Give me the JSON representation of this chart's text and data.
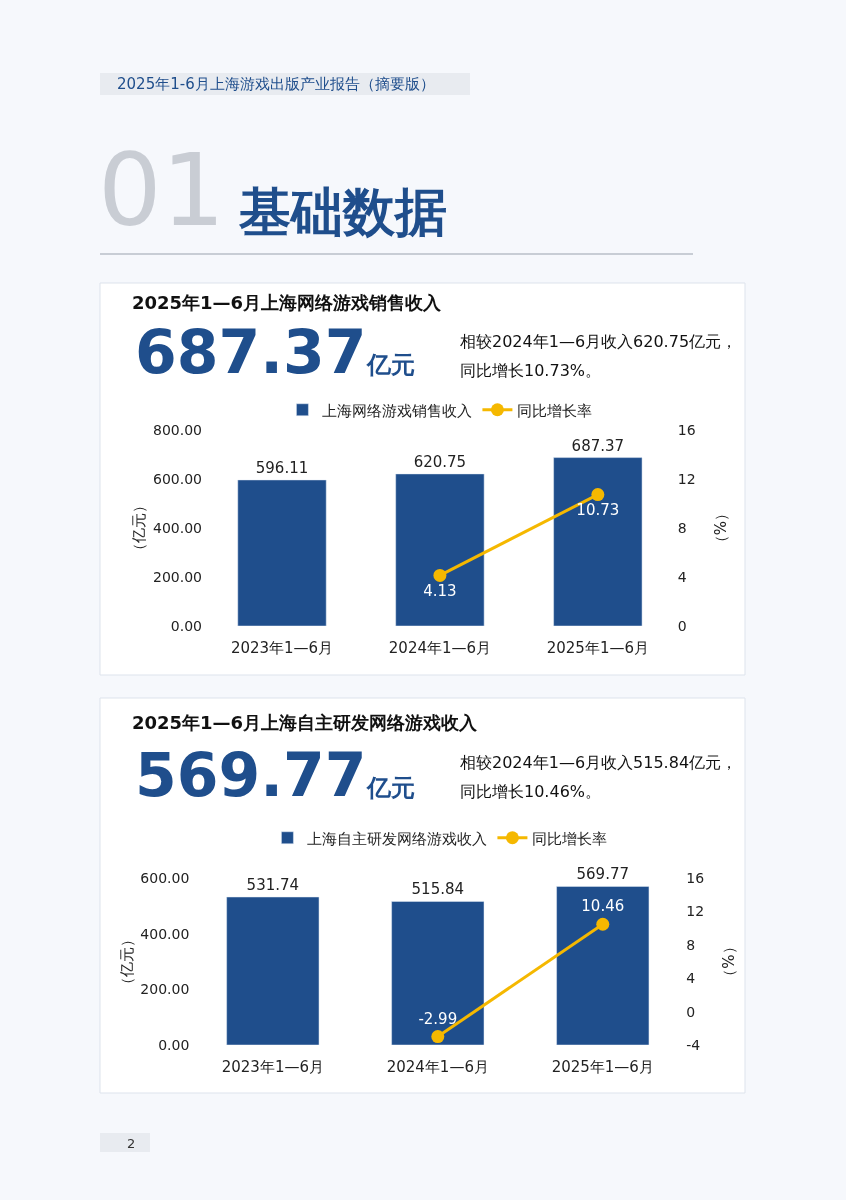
{
  "chart_data": [
    {
      "type": "bar",
      "title": "2025年1—6月上海网络游戏销售收入",
      "ylabel": "（亿元）",
      "y2label": "（%）",
      "annotations": [
        "2025年1-6月上海游戏出版产业报告（摘要版）",
        "01",
        "基础数据",
        "687.37亿元",
        "相较2024年1—6月收入620.75亿元，",
        "同比增长10.73%。"
      ],
      "categories": [
        "2023年1—6月",
        "2024年1—6月",
        "2025年1—6月"
      ],
      "series": [
        {
          "name": "上海网络游戏销售收入",
          "color": "#1f4e8c",
          "values": [
            596.11,
            620.75,
            687.37
          ]
        },
        {
          "name": "同比增长率",
          "type": "line",
          "axis": "y2",
          "color": "#f5b800",
          "values": [
            null,
            4.13,
            10.73
          ]
        }
      ],
      "ylim": [
        0,
        800
      ],
      "yticks": [
        {
          "value": 0,
          "label": "0.00"
        },
        {
          "value": 200,
          "label": "200.00"
        },
        {
          "value": 400,
          "label": "400.00"
        },
        {
          "value": 600,
          "label": "600.00"
        },
        {
          "value": 800,
          "label": "800.00"
        }
      ],
      "y2lim": [
        0,
        16
      ],
      "y2ticks": [
        0,
        4,
        8,
        12,
        16
      ],
      "data_labels": true,
      "legend": "top",
      "marker": "circle"
    },
    {
      "type": "bar",
      "title": "2025年1—6月上海自主研发网络游戏收入",
      "ylabel": "（亿元）",
      "y2label": "（%）",
      "annotations": [
        "569.77亿元",
        "相较2024年1—6月收入515.84亿元，",
        "同比增长10.46%。",
        "2"
      ],
      "categories": [
        "2023年1—6月",
        "2024年1—6月",
        "2025年1—6月"
      ],
      "series": [
        {
          "name": "上海自主研发网络游戏收入",
          "color": "#1f4e8c",
          "values": [
            531.74,
            515.84,
            569.77
          ]
        },
        {
          "name": "同比增长率",
          "type": "line",
          "axis": "y2",
          "color": "#f5b800",
          "values": [
            null,
            -2.99,
            10.46
          ]
        }
      ],
      "ylim": [
        0,
        600
      ],
      "yticks": [
        {
          "value": 0,
          "label": "0.00"
        },
        {
          "value": 200,
          "label": "200.00"
        },
        {
          "value": 400,
          "label": "400.00"
        },
        {
          "value": 600,
          "label": "600.00"
        }
      ],
      "y2lim": [
        -4,
        16
      ],
      "y2ticks": [
        -4,
        0,
        4,
        8,
        12,
        16
      ],
      "data_labels": true,
      "legend": "top",
      "marker": "circle"
    }
  ]
}
